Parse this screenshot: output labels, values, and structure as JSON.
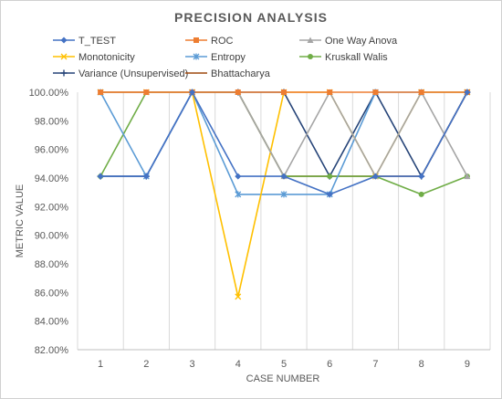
{
  "chart_data": {
    "type": "line",
    "title": "PRECISION ANALYSIS",
    "xlabel": "CASE NUMBER",
    "ylabel": "METRIC VALUE",
    "categories": [
      "1",
      "2",
      "3",
      "4",
      "5",
      "6",
      "7",
      "8",
      "9"
    ],
    "ylim": [
      82,
      100
    ],
    "yticks": [
      "82.00%",
      "84.00%",
      "86.00%",
      "88.00%",
      "90.00%",
      "92.00%",
      "94.00%",
      "96.00%",
      "98.00%",
      "100.00%"
    ],
    "grid": "vertical",
    "legend_position": "top",
    "series": [
      {
        "name": "T_TEST",
        "color": "#4472C4",
        "marker": "diamond",
        "values": [
          94.12,
          94.12,
          100,
          94.12,
          94.12,
          92.86,
          94.12,
          94.12,
          100
        ]
      },
      {
        "name": "ROC",
        "color": "#ED7D31",
        "marker": "square",
        "values": [
          100,
          100,
          100,
          100,
          100,
          100,
          100,
          100,
          100
        ]
      },
      {
        "name": "One Way Anova",
        "color": "#A5A5A5",
        "marker": "triangle",
        "values": [
          100,
          100,
          100,
          100,
          94.12,
          100,
          94.12,
          100,
          94.12
        ]
      },
      {
        "name": "Monotonicity",
        "color": "#FFC000",
        "marker": "x",
        "values": [
          100,
          100,
          100,
          85.71,
          100,
          100,
          94.12,
          100,
          100
        ]
      },
      {
        "name": "Entropy",
        "color": "#5B9BD5",
        "marker": "asterisk",
        "values": [
          100,
          94.12,
          100,
          92.86,
          92.86,
          92.86,
          100,
          100,
          100
        ]
      },
      {
        "name": "Kruskall Walis",
        "color": "#70AD47",
        "marker": "circle",
        "values": [
          94.12,
          100,
          100,
          100,
          94.12,
          94.12,
          94.12,
          92.86,
          94.12
        ]
      },
      {
        "name": "Variance (Unsupervised)",
        "color": "#264478",
        "marker": "plus",
        "values": [
          94.12,
          94.12,
          100,
          100,
          100,
          94.12,
          100,
          94.12,
          100
        ]
      },
      {
        "name": "Bhattacharya",
        "color": "#9E480E",
        "marker": "none",
        "values": [
          100,
          100,
          100,
          100,
          94.12,
          94.12,
          94.12,
          94.12,
          100
        ]
      }
    ]
  }
}
